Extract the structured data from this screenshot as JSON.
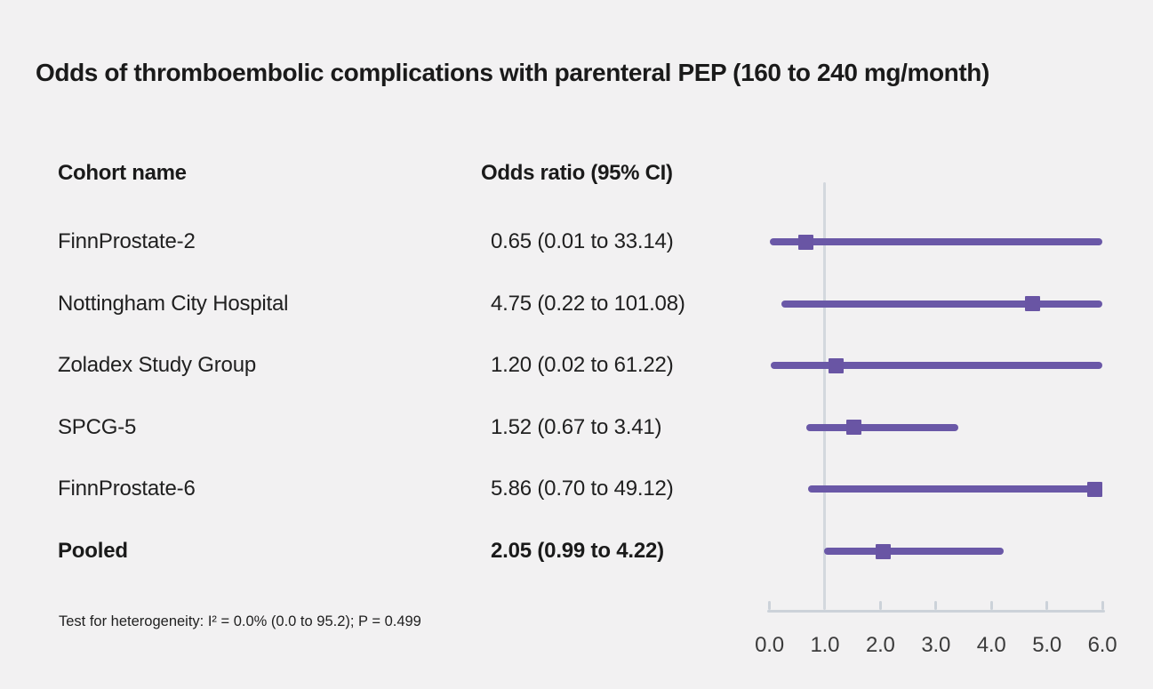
{
  "title": "Odds of thromboembolic complications with parenteral PEP (160 to 240 mg/month)",
  "columns": {
    "cohort_header": "Cohort name",
    "or_header": "Odds ratio (95% CI)"
  },
  "footnote": "Test for heterogeneity: I² = 0.0% (0.0 to 95.2); P = 0.499",
  "colors": {
    "background": "#f2f1f2",
    "line": "#6a58a7",
    "marker": "#6955a4",
    "refline": "#d3d8de",
    "axis": "#ccd2d9",
    "text": "#1a1a1a",
    "axis_text": "#3b3b3b"
  },
  "chart_data": {
    "type": "scatter",
    "subtype": "forest-plot",
    "title": "Odds of thromboembolic complications with parenteral PEP (160 to 240 mg/month)",
    "xlabel": "Odds ratio",
    "xlim": [
      0,
      6
    ],
    "refline_x": 1.0,
    "xticks": [
      0,
      1,
      2,
      3,
      4,
      5,
      6
    ],
    "xtick_labels": [
      "0.0",
      "1.0",
      "2.0",
      "3.0",
      "4.0",
      "5.0",
      "6.0"
    ],
    "rows": [
      {
        "label": "FinnProstate-2",
        "or_text": "0.65 (0.01 to 33.14)",
        "or": 0.65,
        "lo": 0.01,
        "hi": 33.14,
        "bold": false
      },
      {
        "label": "Nottingham City Hospital",
        "or_text": "4.75 (0.22 to 101.08)",
        "or": 4.75,
        "lo": 0.22,
        "hi": 101.08,
        "bold": false
      },
      {
        "label": "Zoladex Study Group",
        "or_text": "1.20 (0.02 to 61.22)",
        "or": 1.2,
        "lo": 0.02,
        "hi": 61.22,
        "bold": false
      },
      {
        "label": "SPCG-5",
        "or_text": "1.52 (0.67 to 3.41)",
        "or": 1.52,
        "lo": 0.67,
        "hi": 3.41,
        "bold": false
      },
      {
        "label": "FinnProstate-6",
        "or_text": "5.86 (0.70 to 49.12)",
        "or": 5.86,
        "lo": 0.7,
        "hi": 49.12,
        "bold": false
      },
      {
        "label": "Pooled",
        "or_text": "2.05 (0.99 to 4.22)",
        "or": 2.05,
        "lo": 0.99,
        "hi": 4.22,
        "bold": true
      }
    ]
  }
}
